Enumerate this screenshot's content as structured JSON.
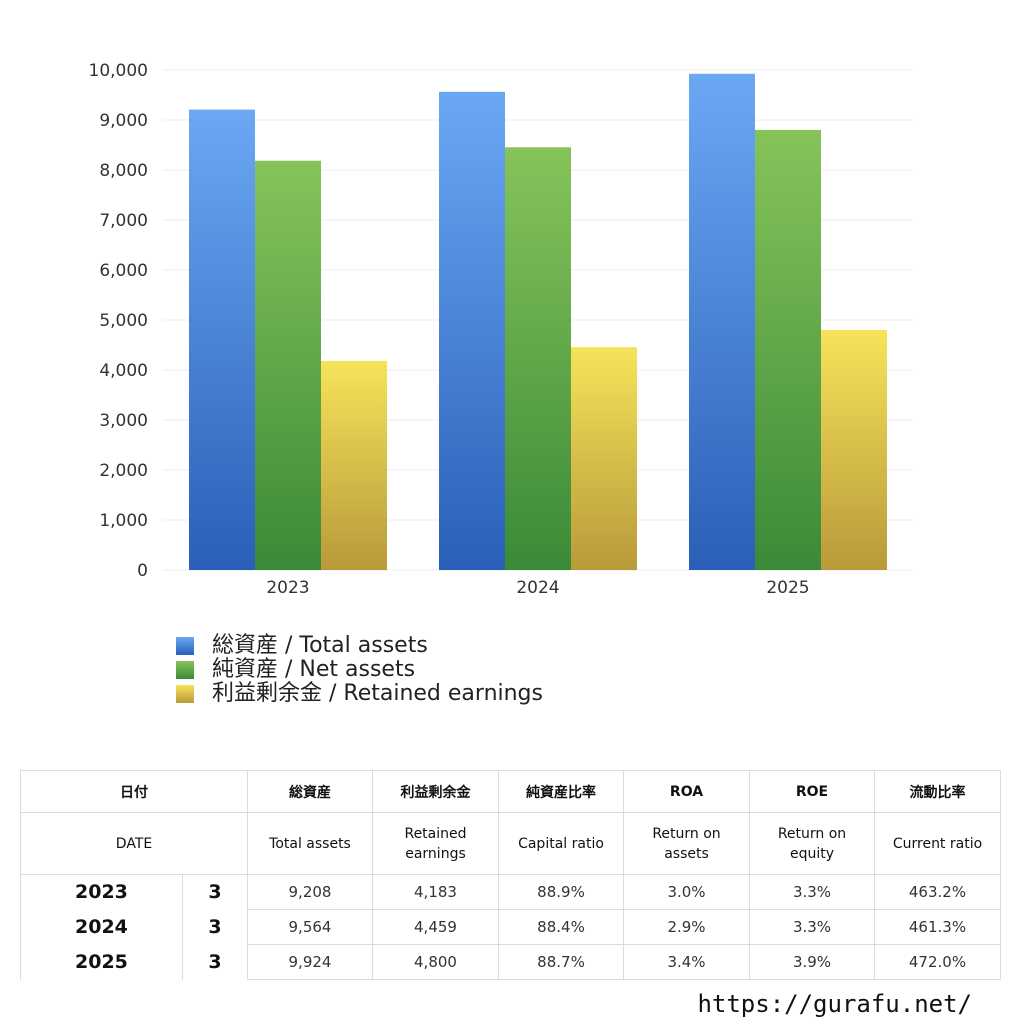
{
  "chart_data": {
    "type": "bar",
    "categories": [
      "2023",
      "2024",
      "2025"
    ],
    "series": [
      {
        "name": "総資産 / Total assets",
        "values": [
          9208,
          9564,
          9924
        ]
      },
      {
        "name": "純資産 / Net assets",
        "values": [
          8186,
          8455,
          8802
        ]
      },
      {
        "name": "利益剰余金 / Retained earnings",
        "values": [
          4183,
          4459,
          4800
        ]
      }
    ],
    "ylim": [
      0,
      10000
    ],
    "yticks": [
      "0",
      "1,000",
      "2,000",
      "3,000",
      "4,000",
      "5,000",
      "6,000",
      "7,000",
      "8,000",
      "9,000",
      "10,000"
    ],
    "grid": true,
    "legend_position": "bottom-left",
    "colors": {
      "blue_top": "#6aa8f4",
      "blue_bottom": "#2a5fb8",
      "green_top": "#86c45a",
      "green_bottom": "#3b8a38",
      "yellow_top": "#f7e35a",
      "yellow_bottom": "#b89a3a"
    }
  },
  "legend": {
    "items": [
      {
        "label": "総資産 / Total assets",
        "color": "#4a85d8"
      },
      {
        "label": "純資産 / Net assets",
        "color": "#5aa648"
      },
      {
        "label": "利益剰余金 / Retained earnings",
        "color": "#e0c34a"
      }
    ]
  },
  "table": {
    "header_jp": {
      "date": "日付",
      "total_assets": "総資産",
      "retained": "利益剰余金",
      "capital_ratio": "純資産比率",
      "roa": "ROA",
      "roe": "ROE",
      "current_ratio": "流動比率"
    },
    "header_en": {
      "date": "DATE",
      "total_assets": "Total assets",
      "retained": "Retained earnings",
      "capital_ratio": "Capital ratio",
      "roa": "Return on assets",
      "roe": "Return on equity",
      "current_ratio": "Current ratio"
    },
    "rows": [
      {
        "year": "2023",
        "month": "3",
        "total_assets": "9,208",
        "retained": "4,183",
        "capital_ratio": "88.9%",
        "roa": "3.0%",
        "roe": "3.3%",
        "current_ratio": "463.2%"
      },
      {
        "year": "2024",
        "month": "3",
        "total_assets": "9,564",
        "retained": "4,459",
        "capital_ratio": "88.4%",
        "roa": "2.9%",
        "roe": "3.3%",
        "current_ratio": "461.3%"
      },
      {
        "year": "2025",
        "month": "3",
        "total_assets": "9,924",
        "retained": "4,800",
        "capital_ratio": "88.7%",
        "roa": "3.4%",
        "roe": "3.9%",
        "current_ratio": "472.0%"
      }
    ]
  },
  "site_url": "https://gurafu.net/"
}
